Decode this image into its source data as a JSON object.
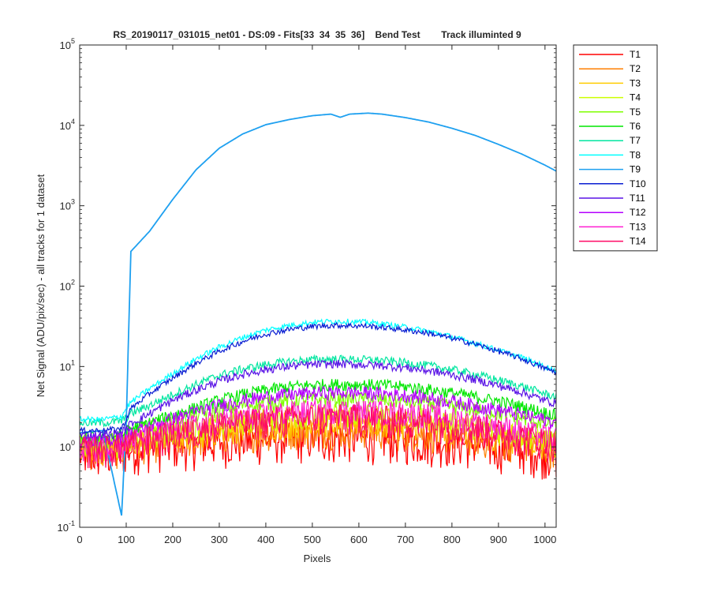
{
  "chart_data": {
    "type": "line",
    "title": "RS_20190117_031015_net01 - DS:09 - Fits[33  34  35  36]    Bend Test        Track illuminted 9",
    "xlabel": "Pixels",
    "ylabel": "Net Signal (ADU/pix/sec) - all tracks for 1 dataset",
    "xlim": [
      0,
      1024
    ],
    "ylim": [
      0.1,
      100000
    ],
    "yscale": "log",
    "x_ticks": [
      "0",
      "100",
      "200",
      "300",
      "400",
      "500",
      "600",
      "700",
      "800",
      "900",
      "1000"
    ],
    "y_ticks": [
      {
        "base": "10",
        "exp": "-1"
      },
      {
        "base": "10",
        "exp": "0"
      },
      {
        "base": "10",
        "exp": "1"
      },
      {
        "base": "10",
        "exp": "2"
      },
      {
        "base": "10",
        "exp": "3"
      },
      {
        "base": "10",
        "exp": "4"
      },
      {
        "base": "10",
        "exp": "5"
      }
    ],
    "legend_position": "outside-right",
    "x": [
      0,
      50,
      90,
      100,
      110,
      150,
      200,
      250,
      300,
      350,
      400,
      450,
      500,
      540,
      560,
      580,
      620,
      650,
      700,
      750,
      800,
      850,
      900,
      950,
      1000,
      1024
    ],
    "series": [
      {
        "name": "T1",
        "color": "#ff0000",
        "values": [
          0.8,
          0.8,
          0.85,
          0.9,
          0.95,
          1.0,
          1.05,
          1.1,
          1.15,
          1.2,
          1.25,
          1.3,
          1.3,
          1.3,
          1.3,
          1.3,
          1.3,
          1.3,
          1.25,
          1.2,
          1.15,
          1.1,
          1.0,
          0.95,
          0.85,
          0.8
        ]
      },
      {
        "name": "T2",
        "color": "#ff7f00",
        "values": [
          0.9,
          0.9,
          0.95,
          1.0,
          1.05,
          1.1,
          1.2,
          1.3,
          1.4,
          1.5,
          1.55,
          1.6,
          1.65,
          1.65,
          1.65,
          1.65,
          1.65,
          1.6,
          1.55,
          1.5,
          1.4,
          1.3,
          1.2,
          1.1,
          1.0,
          0.95
        ]
      },
      {
        "name": "T3",
        "color": "#ffcc00",
        "values": [
          1.0,
          1.0,
          1.05,
          1.1,
          1.15,
          1.25,
          1.4,
          1.55,
          1.7,
          1.85,
          1.95,
          2.05,
          2.1,
          2.1,
          2.1,
          2.1,
          2.1,
          2.05,
          2.0,
          1.9,
          1.75,
          1.6,
          1.45,
          1.3,
          1.15,
          1.1
        ]
      },
      {
        "name": "T4",
        "color": "#ccff00",
        "values": [
          1.05,
          1.05,
          1.1,
          1.15,
          1.2,
          1.35,
          1.55,
          1.75,
          1.95,
          2.15,
          2.3,
          2.45,
          2.5,
          2.55,
          2.55,
          2.55,
          2.5,
          2.45,
          2.35,
          2.25,
          2.05,
          1.85,
          1.65,
          1.45,
          1.3,
          1.2
        ]
      },
      {
        "name": "T5",
        "color": "#7fff00",
        "values": [
          1.2,
          1.2,
          1.3,
          1.4,
          1.5,
          1.75,
          2.1,
          2.5,
          2.9,
          3.3,
          3.6,
          3.8,
          3.9,
          3.95,
          3.95,
          3.95,
          3.9,
          3.85,
          3.7,
          3.5,
          3.2,
          2.9,
          2.6,
          2.3,
          2.0,
          1.9
        ]
      },
      {
        "name": "T6",
        "color": "#00e600",
        "values": [
          1.3,
          1.3,
          1.4,
          1.55,
          1.7,
          2.0,
          2.5,
          3.1,
          3.8,
          4.5,
          5.1,
          5.6,
          5.9,
          6.0,
          6.0,
          6.0,
          5.95,
          5.9,
          5.6,
          5.2,
          4.7,
          4.2,
          3.7,
          3.2,
          2.7,
          2.5
        ]
      },
      {
        "name": "T7",
        "color": "#00e6a0",
        "values": [
          2.0,
          2.0,
          2.1,
          2.3,
          2.6,
          3.3,
          4.5,
          6.0,
          7.8,
          9.3,
          10.6,
          11.6,
          12.2,
          12.4,
          12.4,
          12.3,
          12.2,
          11.9,
          11.2,
          10.3,
          9.2,
          8.0,
          6.8,
          5.7,
          4.6,
          4.2
        ]
      },
      {
        "name": "T8",
        "color": "#00ffff",
        "values": [
          2.2,
          2.2,
          2.4,
          3.0,
          3.6,
          5.3,
          8.2,
          12.5,
          17.5,
          23.0,
          28.5,
          32.5,
          35.5,
          36.5,
          36.5,
          36.3,
          35.5,
          34.0,
          31.0,
          27.5,
          23.5,
          19.5,
          16.0,
          13.0,
          10.0,
          9.0
        ]
      },
      {
        "name": "T9",
        "color": "#1ea0f0",
        "values": [
          1.5,
          1.6,
          0.14,
          2.0,
          270,
          480,
          1200,
          2800,
          5200,
          7800,
          10200,
          11800,
          13200,
          13800,
          12600,
          13800,
          14200,
          13800,
          12500,
          11000,
          9200,
          7500,
          5800,
          4400,
          3200,
          2700
        ]
      },
      {
        "name": "T10",
        "color": "#0a1ed2",
        "values": [
          1.6,
          1.6,
          1.7,
          2.2,
          3.0,
          4.6,
          7.2,
          11.0,
          15.5,
          20.5,
          25.5,
          29.0,
          31.5,
          32.5,
          32.5,
          32.3,
          31.8,
          30.8,
          28.5,
          26.0,
          22.5,
          19.0,
          15.5,
          12.5,
          9.5,
          8.5
        ]
      },
      {
        "name": "T11",
        "color": "#5a14e6",
        "values": [
          1.4,
          1.4,
          1.5,
          1.7,
          1.95,
          2.6,
          3.8,
          5.1,
          6.6,
          8.0,
          9.2,
          10.1,
          10.6,
          10.8,
          10.8,
          10.7,
          10.5,
          10.3,
          9.7,
          8.9,
          7.9,
          6.9,
          5.8,
          4.8,
          3.8,
          3.5
        ]
      },
      {
        "name": "T12",
        "color": "#b400ff",
        "values": [
          1.2,
          1.2,
          1.3,
          1.4,
          1.5,
          1.8,
          2.25,
          2.75,
          3.3,
          3.8,
          4.2,
          4.5,
          4.7,
          4.75,
          4.75,
          4.75,
          4.7,
          4.6,
          4.4,
          4.1,
          3.7,
          3.3,
          2.9,
          2.5,
          2.2,
          2.0
        ]
      },
      {
        "name": "T13",
        "color": "#ff1ed2",
        "values": [
          1.0,
          1.0,
          1.05,
          1.1,
          1.2,
          1.4,
          1.65,
          1.9,
          2.15,
          2.4,
          2.6,
          2.75,
          2.85,
          2.9,
          2.9,
          2.9,
          2.85,
          2.8,
          2.7,
          2.55,
          2.35,
          2.1,
          1.85,
          1.6,
          1.4,
          1.3
        ]
      },
      {
        "name": "T14",
        "color": "#ff0a64",
        "values": [
          0.95,
          0.95,
          1.0,
          1.05,
          1.1,
          1.25,
          1.45,
          1.65,
          1.85,
          2.0,
          2.15,
          2.25,
          2.3,
          2.35,
          2.35,
          2.35,
          2.3,
          2.25,
          2.15,
          2.05,
          1.9,
          1.75,
          1.55,
          1.35,
          1.2,
          1.1
        ]
      }
    ]
  }
}
